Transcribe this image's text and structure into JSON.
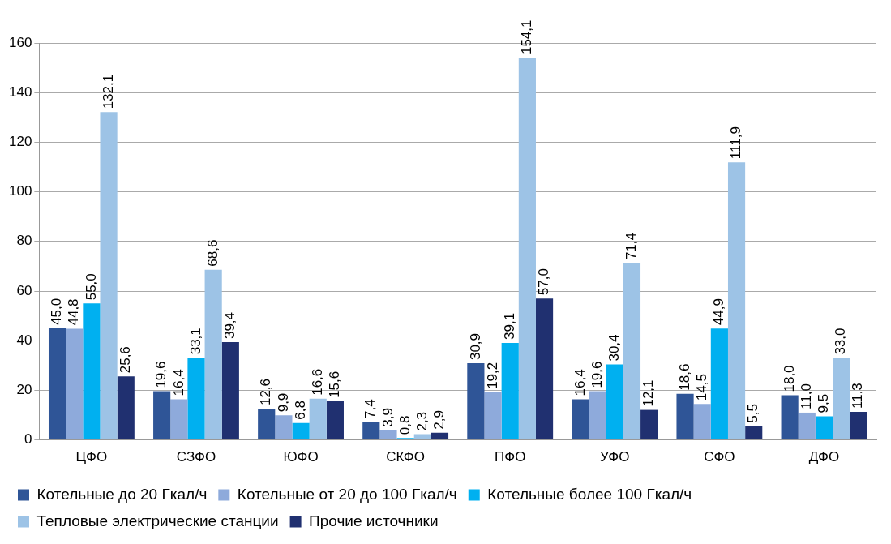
{
  "chart_data": {
    "type": "bar",
    "categories": [
      "ЦФО",
      "СЗФО",
      "ЮФО",
      "СКФО",
      "ПФО",
      "УФО",
      "СФО",
      "ДФО"
    ],
    "series": [
      {
        "name": "Котельные до 20 Гкал/ч",
        "color": "#2f5597",
        "values": [
          45.0,
          19.6,
          12.6,
          7.4,
          30.9,
          16.4,
          18.6,
          18.0
        ],
        "value_labels": [
          "45,0",
          "19,6",
          "12,6",
          "7,4",
          "30,9",
          "16,4",
          "18,6",
          "18,0"
        ]
      },
      {
        "name": "Котельные от 20 до 100 Гкал/ч",
        "color": "#8eaadb",
        "values": [
          44.8,
          16.4,
          9.9,
          3.9,
          19.2,
          19.6,
          14.5,
          11.0
        ],
        "value_labels": [
          "44,8",
          "16,4",
          "9,9",
          "3,9",
          "19,2",
          "19,6",
          "14,5",
          "11,0"
        ]
      },
      {
        "name": "Котельные более 100 Гкал/ч",
        "color": "#00b0f0",
        "values": [
          55.0,
          33.1,
          6.8,
          0.8,
          39.1,
          30.4,
          44.9,
          9.5
        ],
        "value_labels": [
          "55,0",
          "33,1",
          "6,8",
          "0,8",
          "39,1",
          "30,4",
          "44,9",
          "9,5"
        ]
      },
      {
        "name": "Тепловые электрические станции",
        "color": "#9dc3e6",
        "values": [
          132.1,
          68.6,
          16.6,
          2.3,
          154.1,
          71.4,
          111.9,
          33.0
        ],
        "value_labels": [
          "132,1",
          "68,6",
          "16,6",
          "2,3",
          "154,1",
          "71,4",
          "111,9",
          "33,0"
        ]
      },
      {
        "name": "Прочие источники",
        "color": "#203070",
        "values": [
          25.6,
          39.4,
          15.6,
          2.9,
          57.0,
          12.1,
          5.5,
          11.3
        ],
        "value_labels": [
          "25,6",
          "39,4",
          "15,6",
          "2,9",
          "57,0",
          "12,1",
          "5,5",
          "11,3"
        ]
      }
    ],
    "ylim": [
      0,
      160
    ],
    "yticks": [
      0,
      20,
      40,
      60,
      80,
      100,
      120,
      140,
      160
    ],
    "grid": "y",
    "legend": "bottom"
  }
}
